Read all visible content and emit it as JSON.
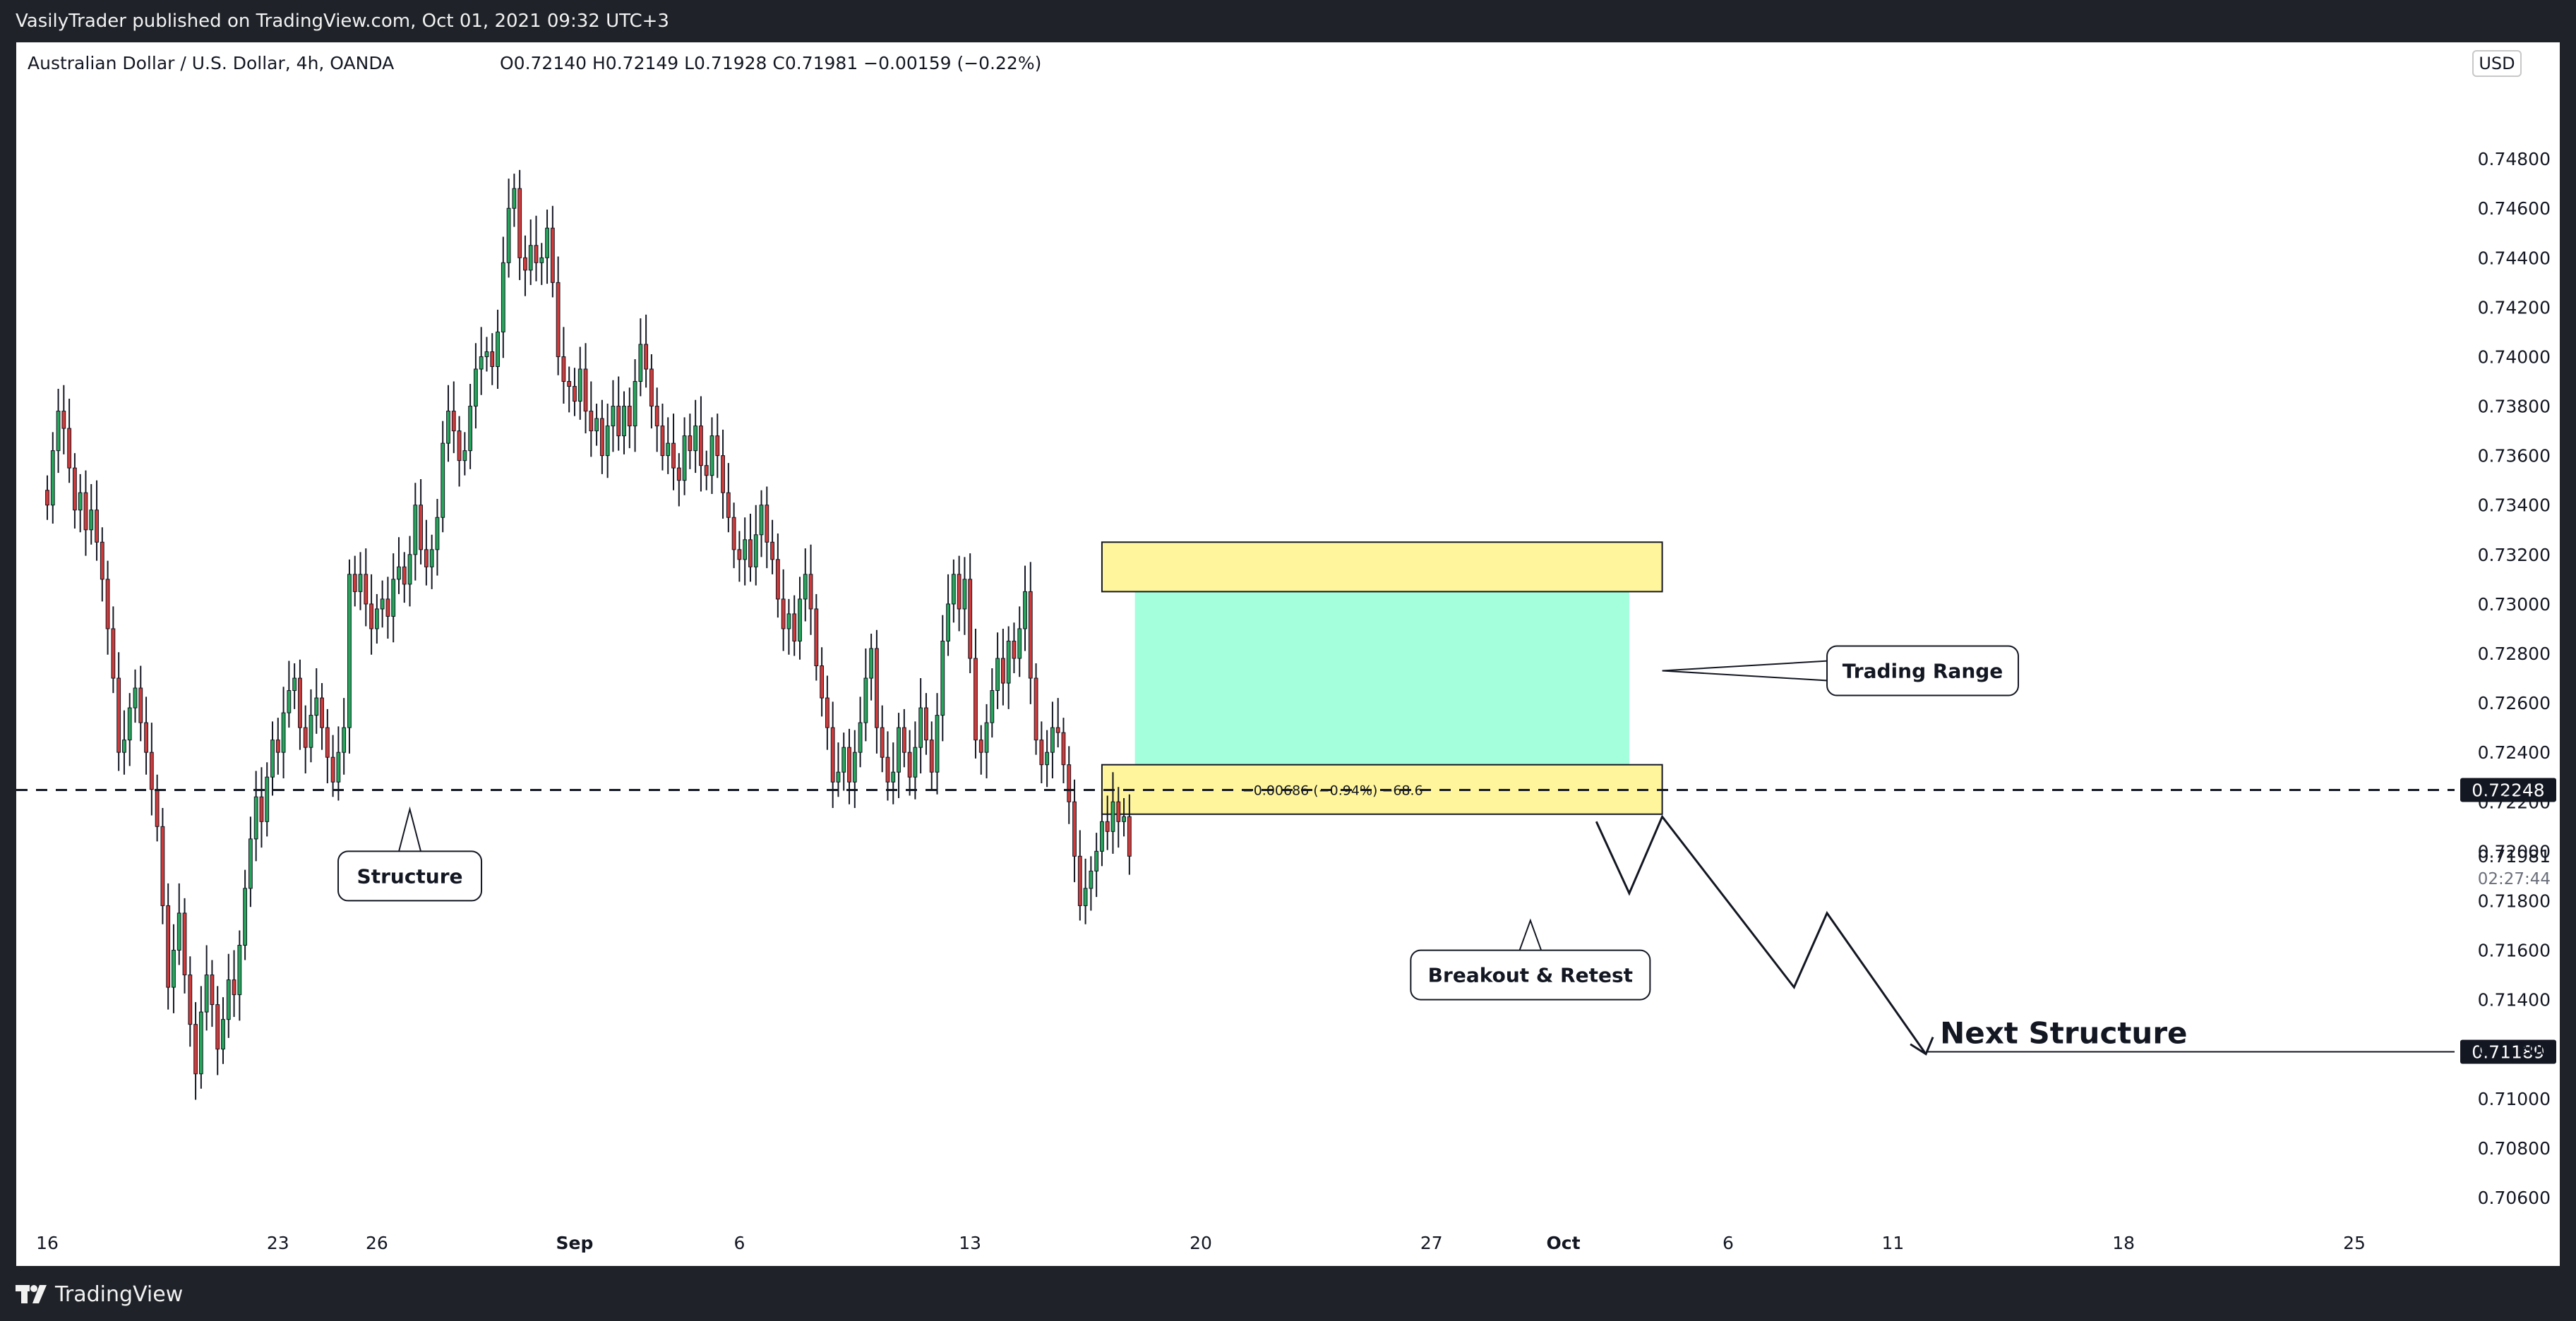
{
  "header": {
    "published": "VasilyTrader published on TradingView.com, Oct 01, 2021 09:32 UTC+3"
  },
  "legend": {
    "symbol": "Australian Dollar / U.S. Dollar, 4h, OANDA",
    "ohlc": "O0.72140 H0.72149 L0.71928 C0.71981 −0.00159 (−0.22%)",
    "currency": "USD"
  },
  "footer": {
    "brand": "TradingView",
    "logo_icon": "tradingview-logo-icon"
  },
  "colors": {
    "up": "#26a65b",
    "down": "#d13a3a",
    "range_fill": "#a3ffdc",
    "zone_fill": "#fff59d",
    "label_bg": "#131722"
  },
  "chart_data": {
    "type": "candlestick",
    "ylim": [
      0.705,
      0.751
    ],
    "yticks": [
      0.706,
      0.708,
      0.71,
      0.712,
      0.714,
      0.716,
      0.718,
      0.72,
      0.722,
      0.724,
      0.726,
      0.728,
      0.73,
      0.732,
      0.734,
      0.736,
      0.738,
      0.74,
      0.742,
      0.744,
      0.746,
      0.748
    ],
    "ytick_labels": [
      "0.70600",
      "0.70800",
      "0.71000",
      "0.71200",
      "0.71400",
      "0.71600",
      "0.71800",
      "0.72000",
      "0.72200",
      "0.72400",
      "0.72600",
      "0.72800",
      "0.73000",
      "0.73200",
      "0.73400",
      "0.73600",
      "0.73800",
      "0.74000",
      "0.74200",
      "0.74400",
      "0.74600",
      "0.74800"
    ],
    "xlabels": [
      "16",
      "23",
      "26",
      "Sep",
      "6",
      "13",
      "20",
      "27",
      "Oct",
      "6",
      "11",
      "18",
      "25"
    ],
    "x_range": [
      "2021-08-16",
      "2021-10-25"
    ],
    "xlabel_dates": [
      "2021-08-16",
      "2021-08-23",
      "2021-08-26",
      "2021-09-01",
      "2021-09-06",
      "2021-09-13",
      "2021-09-20",
      "2021-09-27",
      "2021-10-01",
      "2021-10-06",
      "2021-10-11",
      "2021-10-18",
      "2021-10-25"
    ],
    "price_close": 0.71981,
    "countdown": "02:27:44",
    "horizontal_level": 0.72248,
    "horizontal_level_label": "0.72248",
    "target_level": 0.71189,
    "target_level_label": "0.71189",
    "close_label": "0.71981",
    "candles": {
      "start": "2021-08-16",
      "step_hours": 4,
      "closes": [
        0.734,
        0.7362,
        0.7378,
        0.7371,
        0.7355,
        0.7338,
        0.7345,
        0.733,
        0.7338,
        0.7325,
        0.731,
        0.729,
        0.727,
        0.724,
        0.7245,
        0.7258,
        0.7266,
        0.7252,
        0.724,
        0.7225,
        0.721,
        0.7178,
        0.7145,
        0.716,
        0.7175,
        0.715,
        0.713,
        0.711,
        0.7135,
        0.715,
        0.7138,
        0.712,
        0.7132,
        0.7148,
        0.7142,
        0.7162,
        0.7185,
        0.7205,
        0.7222,
        0.7212,
        0.723,
        0.7245,
        0.724,
        0.7256,
        0.7265,
        0.727,
        0.725,
        0.7242,
        0.7255,
        0.7262,
        0.725,
        0.7238,
        0.7228,
        0.724,
        0.725,
        0.7312,
        0.7305,
        0.7312,
        0.73,
        0.729,
        0.7298,
        0.7302,
        0.7295,
        0.731,
        0.7315,
        0.7308,
        0.732,
        0.734,
        0.7322,
        0.7315,
        0.7322,
        0.7335,
        0.7365,
        0.7378,
        0.737,
        0.7358,
        0.7362,
        0.738,
        0.7395,
        0.74,
        0.7402,
        0.7396,
        0.741,
        0.7438,
        0.746,
        0.7468,
        0.744,
        0.7435,
        0.7445,
        0.7438,
        0.744,
        0.7452,
        0.743,
        0.74,
        0.739,
        0.7388,
        0.7382,
        0.7395,
        0.7378,
        0.737,
        0.7375,
        0.736,
        0.7372,
        0.738,
        0.7368,
        0.738,
        0.7372,
        0.739,
        0.7405,
        0.7395,
        0.738,
        0.7372,
        0.736,
        0.7365,
        0.7355,
        0.735,
        0.7368,
        0.7362,
        0.7372,
        0.7356,
        0.7352,
        0.7368,
        0.736,
        0.7345,
        0.7335,
        0.7322,
        0.7318,
        0.7326,
        0.7315,
        0.7328,
        0.734,
        0.7325,
        0.7318,
        0.7302,
        0.729,
        0.7296,
        0.7285,
        0.7302,
        0.7312,
        0.7298,
        0.7275,
        0.7262,
        0.725,
        0.7228,
        0.7232,
        0.7242,
        0.7228,
        0.724,
        0.7252,
        0.727,
        0.7282,
        0.725,
        0.7238,
        0.7228,
        0.7232,
        0.725,
        0.724,
        0.723,
        0.7242,
        0.7258,
        0.7245,
        0.7232,
        0.7255,
        0.7285,
        0.73,
        0.7312,
        0.7298,
        0.731,
        0.7278,
        0.7245,
        0.724,
        0.7252,
        0.7265,
        0.7278,
        0.7268,
        0.7285,
        0.7278,
        0.729,
        0.7305,
        0.727,
        0.7245,
        0.7235,
        0.724,
        0.725,
        0.7248,
        0.7235,
        0.722,
        0.7198,
        0.7178,
        0.7185,
        0.7192,
        0.72,
        0.7212,
        0.7208,
        0.722,
        0.7212,
        0.7214,
        0.7198
      ]
    },
    "zones": [
      {
        "type": "range",
        "y_top": 0.7305,
        "y_bottom": 0.7235,
        "x_start": "2021-09-18",
        "x_end": "2021-10-03"
      },
      {
        "type": "upper-zone",
        "y_top": 0.7325,
        "y_bottom": 0.7305,
        "x_start": "2021-09-17",
        "x_end": "2021-10-04"
      },
      {
        "type": "lower-zone",
        "y_top": 0.7235,
        "y_bottom": 0.7215,
        "x_start": "2021-09-17",
        "x_end": "2021-10-04"
      }
    ],
    "measure_label": "−0.00686 (−0.94%) −68.6",
    "annotations": [
      {
        "text": "Structure",
        "x": "2021-08-27",
        "y": 0.719,
        "pointer": [
          "2021-08-27",
          0.7217
        ]
      },
      {
        "text": "Trading Range",
        "x": "2021-10-09",
        "y": 0.7273,
        "pointer": [
          "2021-10-04",
          0.7273
        ]
      },
      {
        "text": "Breakout & Retest",
        "x": "2021-09-30",
        "y": 0.715,
        "pointer": [
          "2021-09-30",
          0.7172
        ]
      },
      {
        "text": "Next Structure",
        "x": "2021-10-12",
        "y": 0.712
      }
    ],
    "projection_path": [
      [
        "2021-10-02",
        0.7212
      ],
      [
        "2021-10-03",
        0.7183
      ],
      [
        "2021-10-04",
        0.7214
      ],
      [
        "2021-10-08",
        0.7145
      ],
      [
        "2021-10-09",
        0.7175
      ],
      [
        "2021-10-12",
        0.7118
      ]
    ]
  }
}
